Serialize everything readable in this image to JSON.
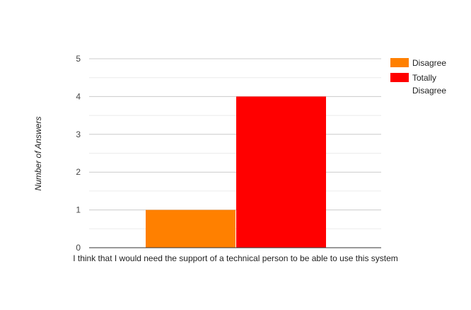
{
  "chart_data": {
    "type": "bar",
    "title": "",
    "xlabel": "",
    "ylabel": "Number of Answers",
    "categories": [
      "I think that I would need the support of a technical person to be able to use this system"
    ],
    "series": [
      {
        "name": "Disagree",
        "values": [
          1
        ],
        "color": "#ff8000"
      },
      {
        "name": "Totally Disagree",
        "values": [
          4
        ],
        "color": "#ff0000"
      }
    ],
    "ylim": [
      0,
      5
    ],
    "yticks": [
      0,
      1,
      2,
      3,
      4,
      5
    ],
    "grid": true,
    "minor_grid": true,
    "legend_position": "right",
    "legend": [
      {
        "label_lines": [
          "Disagree"
        ],
        "color": "#ff8000"
      },
      {
        "label_lines": [
          "Totally",
          "Disagree"
        ],
        "color": "#ff0000"
      }
    ]
  }
}
